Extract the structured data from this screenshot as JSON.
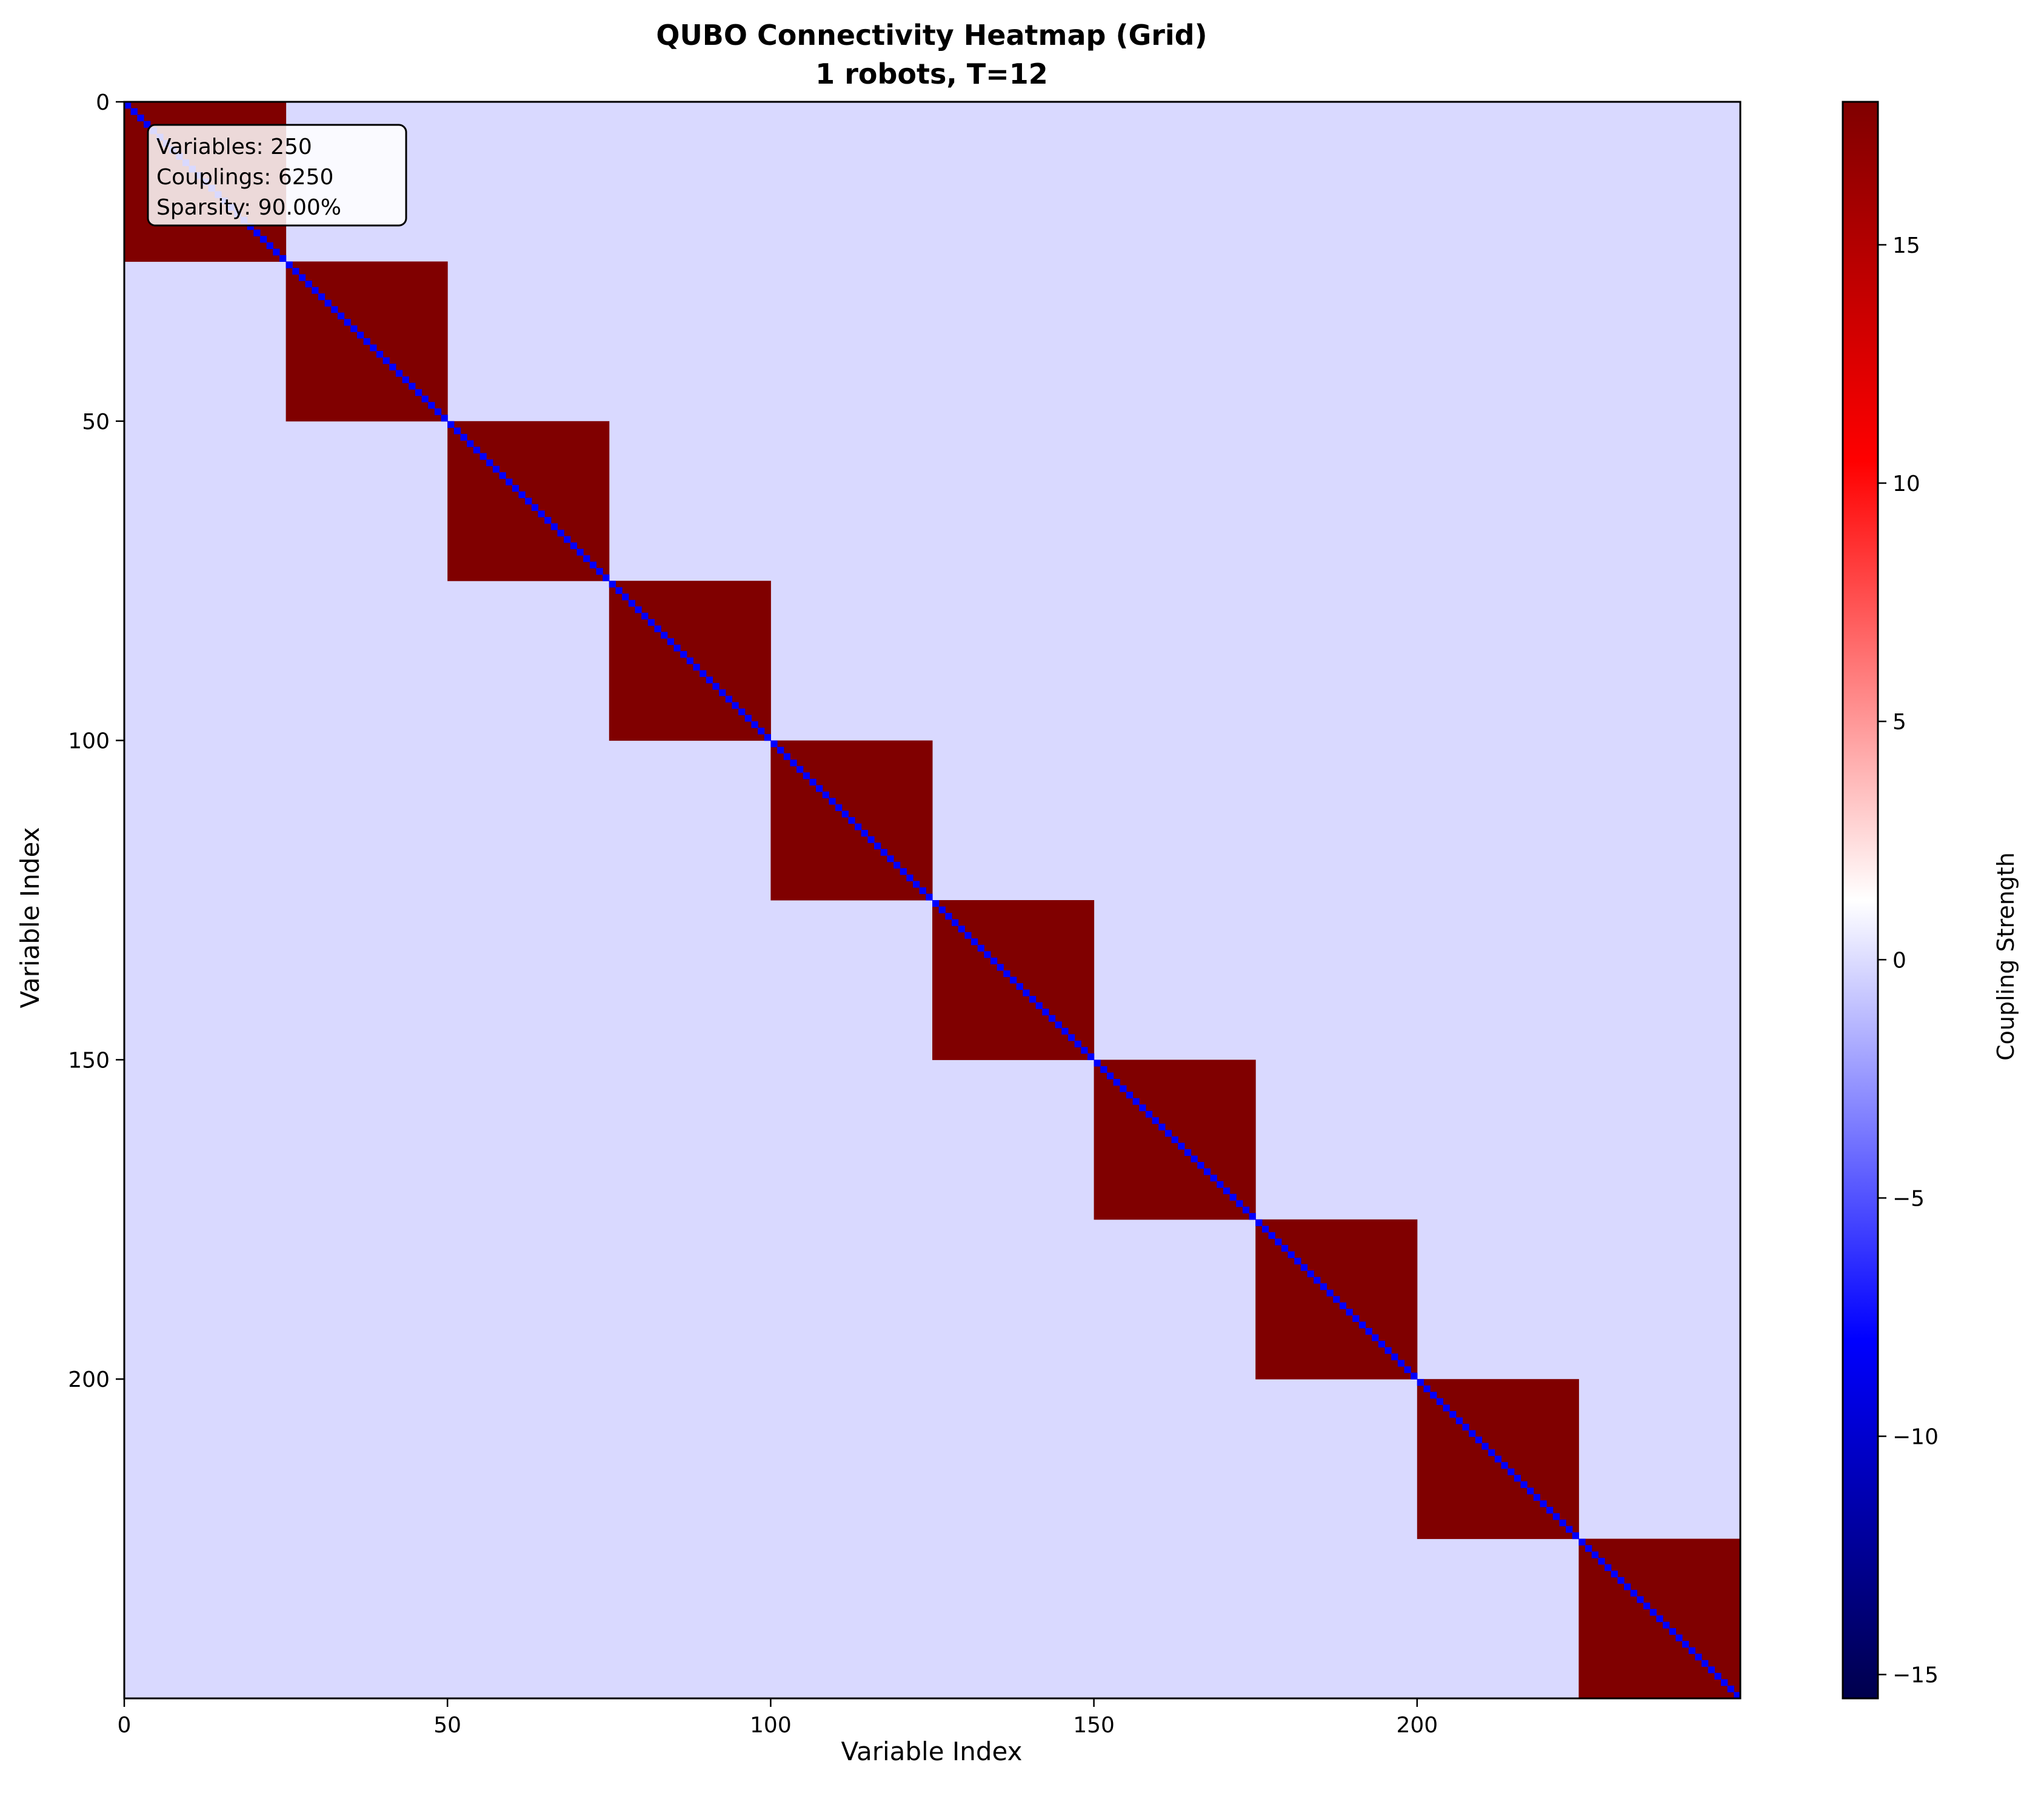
{
  "chart_data": {
    "type": "heatmap",
    "title": "QUBO Connectivity Heatmap (Grid)",
    "subtitle": "1 robots, T=12",
    "xlabel": "Variable Index",
    "ylabel": "Variable Index",
    "n": 250,
    "block_size": 25,
    "block_value": 18,
    "diagonal_value": -6,
    "background_value": -1,
    "x_ticks": [
      0,
      50,
      100,
      150,
      200
    ],
    "y_ticks": [
      0,
      50,
      100,
      150,
      200
    ],
    "y_direction": "top-to-bottom",
    "colorbar": {
      "label": "Coupling Strength",
      "vmin": -15.5,
      "vmax": 18,
      "ticks": [
        -15,
        -10,
        -5,
        0,
        5,
        10,
        15
      ],
      "tick_labels": [
        "−15",
        "−10",
        "−5",
        "0",
        "5",
        "10",
        "15"
      ],
      "colormap": "seismic",
      "colormap_stops": [
        "#00004c",
        "#0000ff",
        "#ffffff",
        "#ff0000",
        "#800000"
      ],
      "center_value": 1.25
    },
    "annotation": {
      "lines": [
        "Variables: 250",
        "Couplings: 6250",
        "Sparsity: 90.00%"
      ],
      "placement": "top-left"
    },
    "grid": false
  }
}
